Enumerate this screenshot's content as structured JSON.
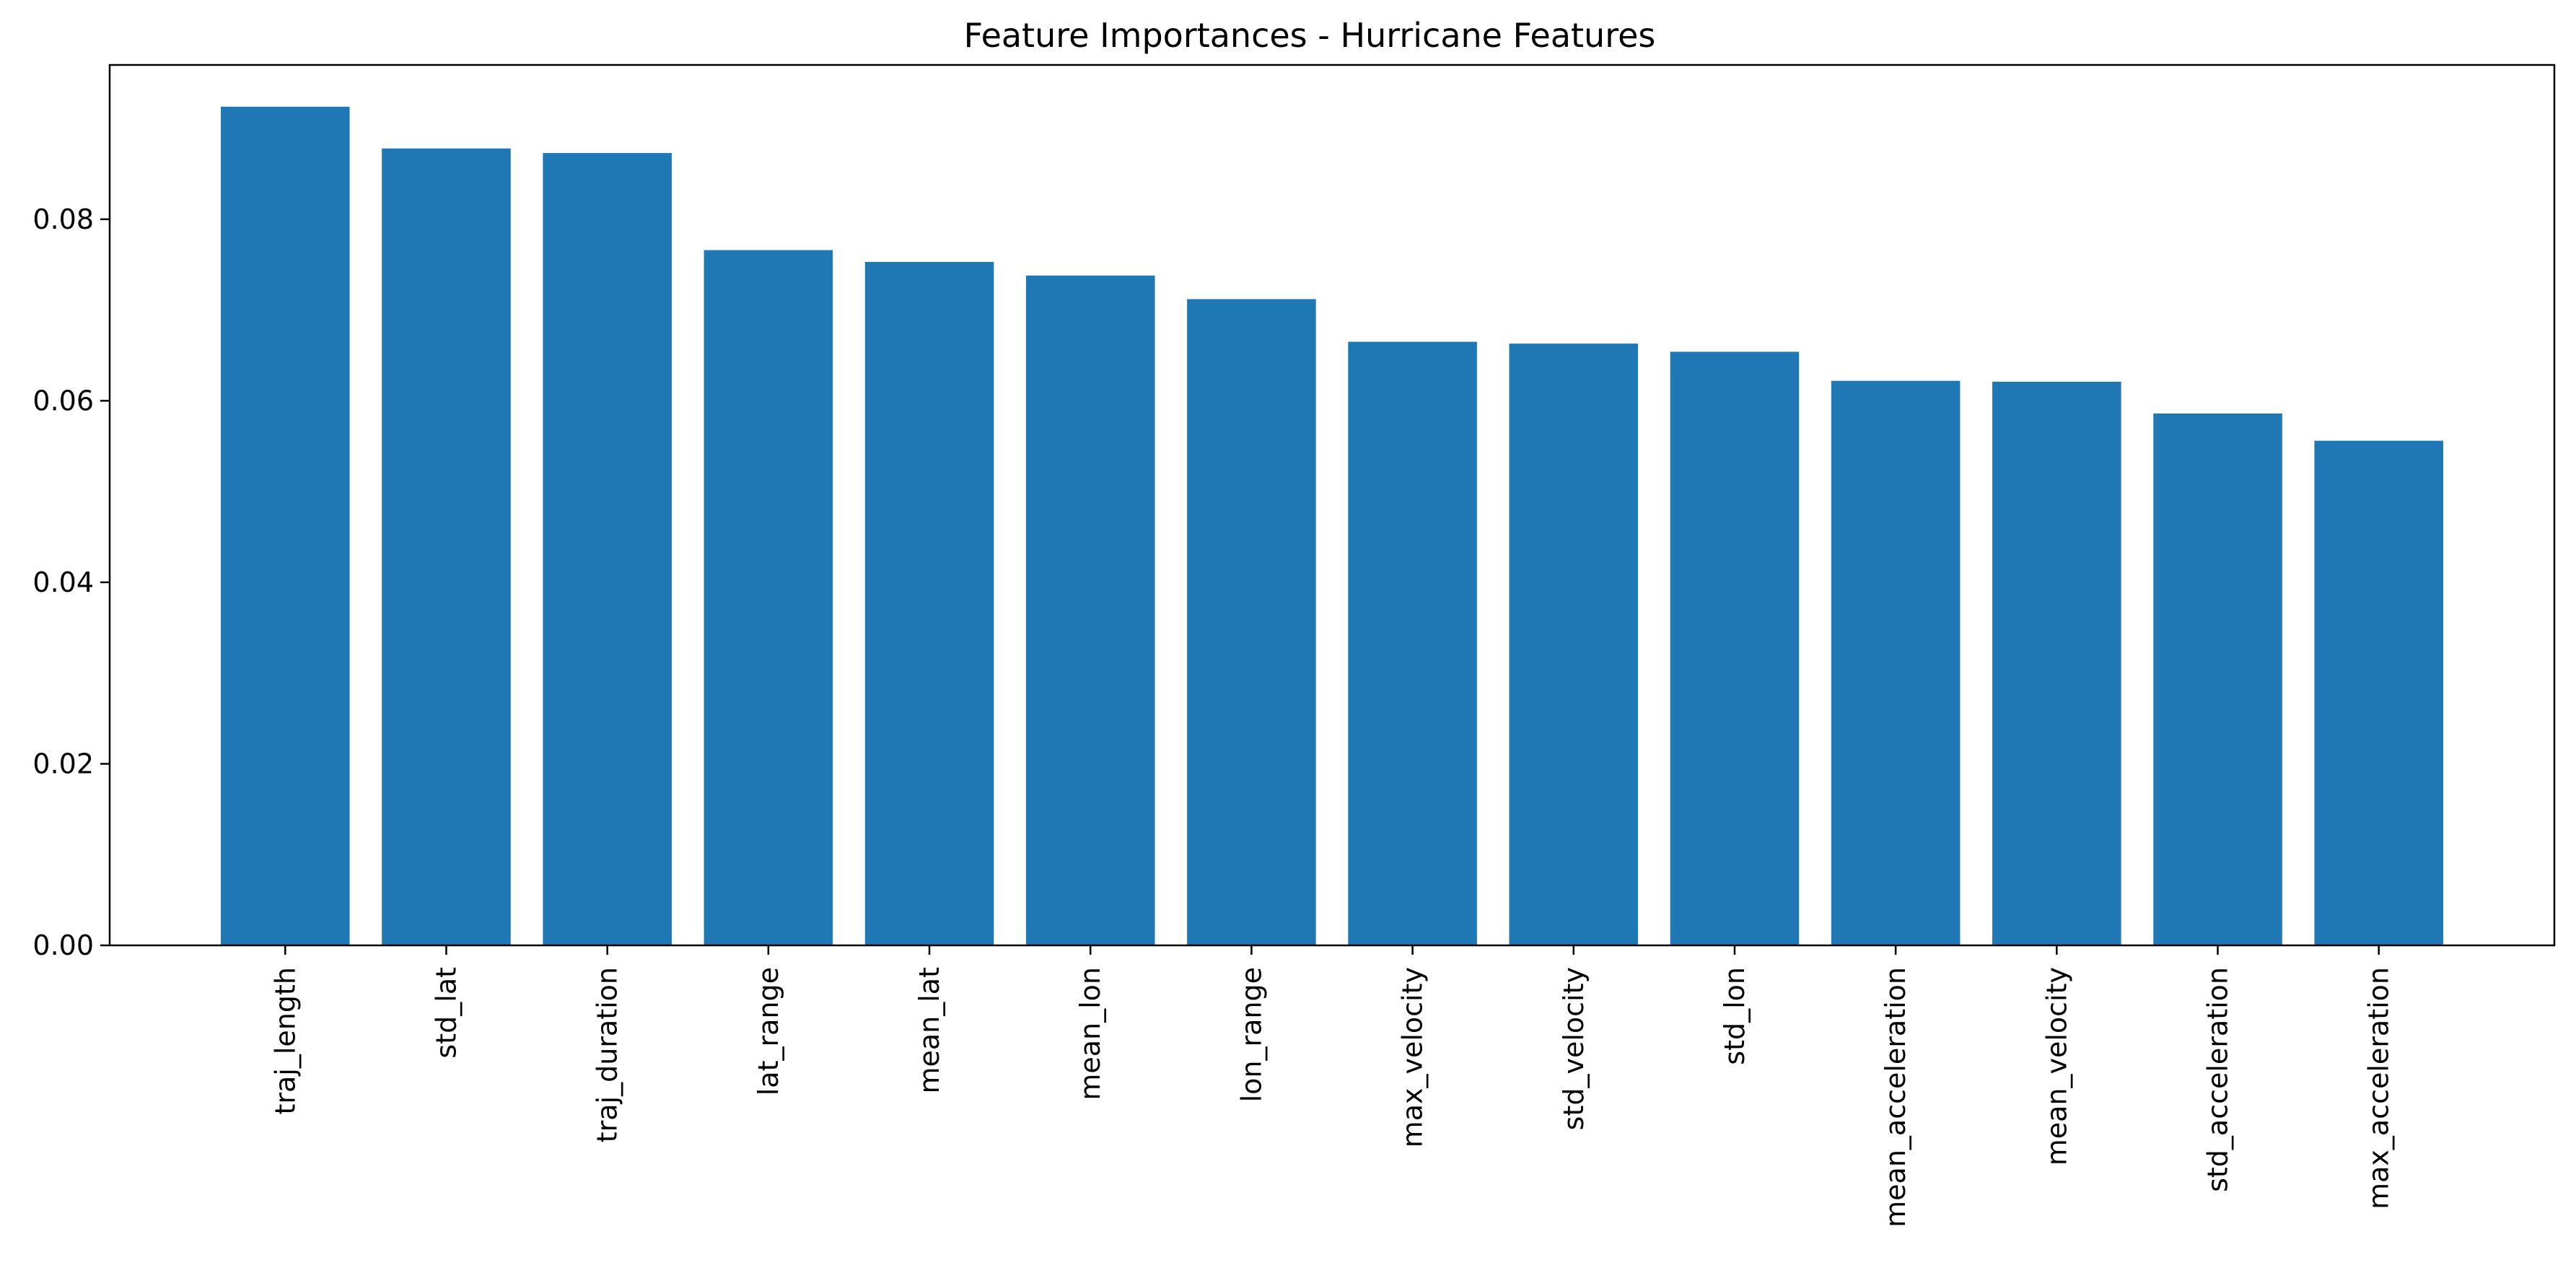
{
  "chart_data": {
    "type": "bar",
    "title": "Feature Importances - Hurricane Features",
    "xlabel": "",
    "ylabel": "",
    "categories": [
      "traj_length",
      "std_lat",
      "traj_duration",
      "lat_range",
      "mean_lat",
      "mean_lon",
      "lon_range",
      "max_velocity",
      "std_velocity",
      "std_lon",
      "mean_acceleration",
      "mean_velocity",
      "std_acceleration",
      "max_acceleration"
    ],
    "values": [
      0.0924,
      0.0878,
      0.0873,
      0.0766,
      0.0753,
      0.0738,
      0.0712,
      0.0665,
      0.0663,
      0.0654,
      0.0622,
      0.0621,
      0.0586,
      0.0556
    ],
    "ylim": [
      0,
      0.097
    ],
    "yticks": [
      0.0,
      0.02,
      0.04,
      0.06,
      0.08
    ],
    "ytick_labels": [
      "0.00",
      "0.02",
      "0.04",
      "0.06",
      "0.08"
    ],
    "bar_color": "#1f77b4",
    "grid": false,
    "legend": "none"
  }
}
